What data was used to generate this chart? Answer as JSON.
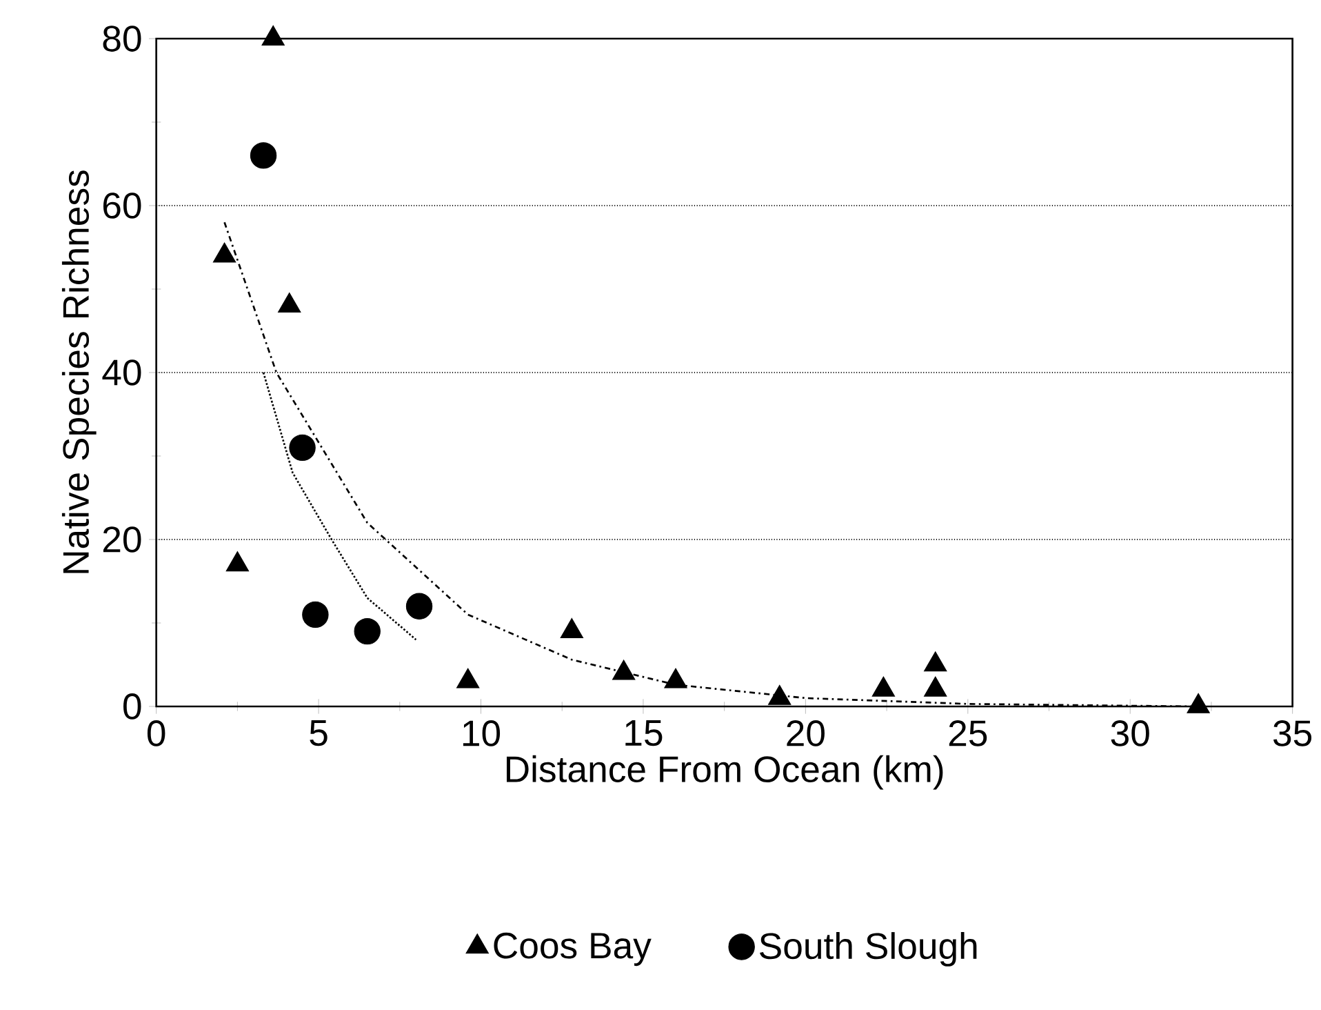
{
  "chart_data": {
    "type": "scatter",
    "xlabel": "Distance From Ocean (km)",
    "ylabel": "Native Species Richness",
    "xlim": [
      0,
      35
    ],
    "ylim": [
      0,
      80
    ],
    "xticks": [
      0,
      5,
      10,
      15,
      20,
      25,
      30,
      35
    ],
    "yticks": [
      0,
      20,
      40,
      60,
      80
    ],
    "grid": "y",
    "legend": "bottom",
    "series": [
      {
        "name": "Coos Bay",
        "marker": "triangle",
        "color": "#000000",
        "x": [
          3.6,
          2.1,
          4.1,
          2.5,
          9.6,
          12.8,
          14.4,
          16,
          19.2,
          22.4,
          24,
          24,
          32.1
        ],
        "values": [
          80,
          54,
          48,
          17,
          3,
          9,
          4,
          3,
          1,
          2,
          5,
          2,
          0
        ]
      },
      {
        "name": "South Slough",
        "marker": "circle",
        "color": "#000000",
        "x": [
          3.3,
          4.5,
          4.9,
          6.5,
          8.1
        ],
        "values": [
          66,
          31,
          11,
          9,
          12
        ]
      },
      {
        "type": "line",
        "line_style": "dashed",
        "color": "#000000",
        "x": [
          2.1,
          3.7,
          6.5,
          9.6,
          12.8,
          16,
          20,
          25,
          32
        ],
        "values": [
          58,
          40,
          22,
          11,
          5.6,
          2.6,
          1,
          0.3,
          0
        ]
      },
      {
        "type": "line",
        "line_style": "dotted",
        "color": "#000000",
        "x": [
          3.3,
          4.2,
          5.4,
          6.5,
          8
        ],
        "values": [
          40,
          28,
          20,
          13,
          8
        ]
      }
    ]
  }
}
